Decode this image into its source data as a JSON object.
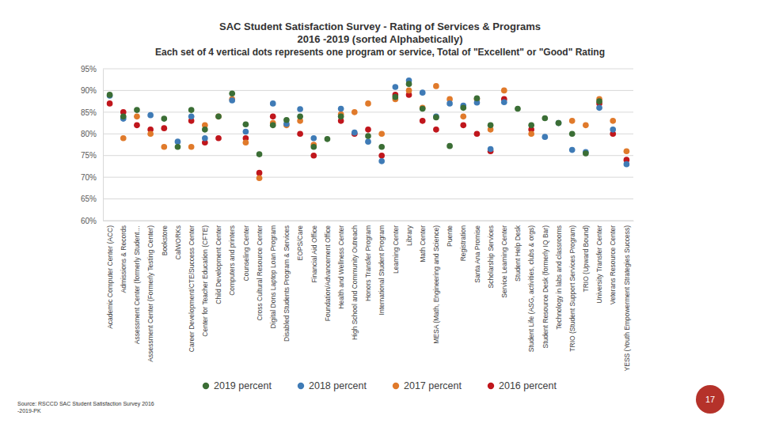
{
  "chart_data": {
    "type": "scatter",
    "title": "SAC Student Satisfaction Survey - Rating of Services & Programs",
    "subtitle": [
      "2016 -2019 (sorted Alphabetically)",
      "Each set of 4 vertical dots represents one program or service, Total of \"Excellent\" or \"Good\" Rating"
    ],
    "categories": [
      "Academic Computer Center (ACC)",
      "Admissions & Records",
      "Assessment Center (formerly Student…",
      "Assessment Center (Formerly Testing Center)",
      "Bookstore",
      "CalWORKs",
      "Career Development/CTE/Success Center",
      "Center for Teacher Education (CFTE)",
      "Child Development Center",
      "Computers and printers",
      "Counseling Center",
      "Cross Cultural Resource Center",
      "Digital Dons Laptop Loan Program",
      "Disabled Students Program & Services",
      "EOPS/Care",
      "Financial Aid Office",
      "Foundation/Advancement Office",
      "Health and Wellness Center",
      "High School and Community Outreach",
      "Honors Transfer Program",
      "International Student Program",
      "Learning Center",
      "Library",
      "Math Center",
      "MESA (Math, Engineering and Science)",
      "Puente",
      "Registration",
      "Santa Ana Promise",
      "Scholarship Services",
      "Service Learning Center",
      "Student Help Desk",
      "Student Life (ASG, activities, clubs & orgs)",
      "Student Resource Desk (formerly IQ Bar)",
      "Technology in labs and classrooms",
      "TRIO (Student Support Services Program)",
      "TRIO (Upward Bound)",
      "University Transfer Center",
      "Veterans Resource Center",
      "YESS (Youth Empowerment Strategies Success)"
    ],
    "series": [
      {
        "name": "2019 percent",
        "color": "#3b6e35",
        "values": [
          89,
          84,
          85.5,
          null,
          83.5,
          77,
          85.5,
          81,
          84,
          89.3,
          82.2,
          75.3,
          82,
          83.2,
          84,
          77,
          78.8,
          84,
          null,
          79.5,
          77,
          88.5,
          91.5,
          85.8,
          83.8,
          77.2,
          86,
          88.2,
          82,
          null,
          85.8,
          82,
          83.6,
          82.5,
          80,
          75.5,
          87.5,
          null,
          null
        ]
      },
      {
        "name": "2018 percent",
        "color": "#3f7bb6",
        "values": [
          88.8,
          83.5,
          null,
          84.3,
          null,
          78.2,
          84,
          79,
          null,
          87.7,
          80.5,
          null,
          87,
          82.3,
          85.7,
          79,
          null,
          85.8,
          80.3,
          78.2,
          73.7,
          90.8,
          92.3,
          89.5,
          84,
          87,
          86.5,
          87.2,
          76.5,
          87.3,
          null,
          null,
          79.3,
          82.5,
          76.3,
          75.8,
          86,
          81,
          73
        ]
      },
      {
        "name": "2017 percent",
        "color": "#e07a2b",
        "values": [
          null,
          79,
          84,
          80,
          77,
          null,
          77,
          82,
          84,
          88,
          78,
          69.8,
          82.5,
          82,
          83,
          77.5,
          null,
          84.5,
          85,
          87,
          80,
          88,
          90,
          86,
          91,
          88,
          84,
          88,
          81,
          90,
          null,
          80,
          null,
          null,
          83,
          82,
          88,
          83,
          76
        ]
      },
      {
        "name": "2016 percent",
        "color": "#c0161c",
        "values": [
          87,
          85,
          82,
          81,
          81.3,
          null,
          83,
          78,
          79,
          null,
          79,
          71,
          84,
          null,
          80,
          75,
          null,
          83,
          80,
          81,
          75,
          89,
          89,
          83,
          81,
          null,
          82,
          80,
          76,
          88,
          null,
          81,
          null,
          null,
          null,
          null,
          87,
          80,
          74
        ]
      }
    ],
    "ylim": [
      60,
      95
    ],
    "yticks": [
      {
        "value": 60,
        "label": "60%"
      },
      {
        "value": 65,
        "label": "65%"
      },
      {
        "value": 70,
        "label": "70%"
      },
      {
        "value": 75,
        "label": "75%"
      },
      {
        "value": 80,
        "label": "80%"
      },
      {
        "value": 85,
        "label": "85%"
      },
      {
        "value": 90,
        "label": "90%"
      },
      {
        "value": 95,
        "label": "95%"
      }
    ],
    "grid": true,
    "legend": "bottom",
    "marker": "circle"
  },
  "slide": {
    "source": [
      "Source: RSCCD SAC Student Satisfaction Survey 2016",
      "-2019-PK"
    ],
    "page": 17
  }
}
